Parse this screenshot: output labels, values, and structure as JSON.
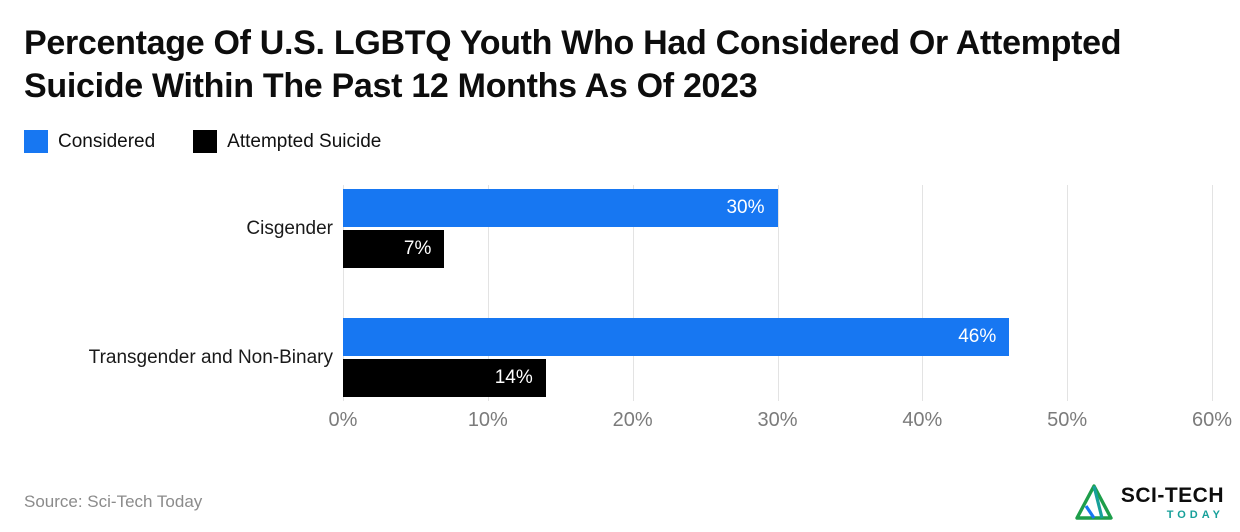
{
  "title": "Percentage Of U.S. LGBTQ Youth Who Had Considered Or Attempted Suicide Within The Past 12 Months As Of 2023",
  "legend": [
    {
      "label": "Considered",
      "color": "#1777f2"
    },
    {
      "label": "Attempted Suicide",
      "color": "#000000"
    }
  ],
  "chart_data": {
    "type": "bar",
    "orientation": "horizontal",
    "title": "Percentage Of U.S. LGBTQ Youth Who Had Considered Or Attempted Suicide Within The Past 12 Months As Of 2023",
    "categories": [
      "Cisgender",
      "Transgender and Non-Binary"
    ],
    "series": [
      {
        "name": "Considered",
        "color": "#1777f2",
        "values": [
          30,
          46
        ],
        "labels": [
          "30%",
          "46%"
        ]
      },
      {
        "name": "Attempted Suicide",
        "color": "#000000",
        "values": [
          7,
          14
        ],
        "labels": [
          "7%",
          "14%"
        ]
      }
    ],
    "xlim": [
      0,
      60
    ],
    "x_tick_values": [
      0,
      10,
      20,
      30,
      40,
      50,
      60
    ],
    "x_ticks": [
      "0%",
      "10%",
      "20%",
      "30%",
      "40%",
      "50%",
      "60%"
    ],
    "grid": true,
    "legend_position": "top"
  },
  "footer": {
    "source": "Source: Sci-Tech Today",
    "logo": {
      "text_primary": "SCI-TECH",
      "text_secondary": "TODAY"
    }
  }
}
